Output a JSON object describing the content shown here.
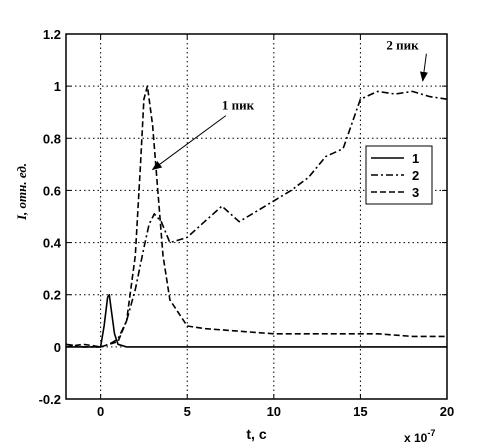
{
  "chart_data": {
    "type": "line",
    "xlabel": "t, c",
    "ylabel": "I, отн. ед.",
    "x_multiplier": "x 10",
    "x_multiplier_exp": "-7",
    "xlim": [
      -2,
      20
    ],
    "ylim": [
      -0.2,
      1.2
    ],
    "x_ticks": [
      0,
      5,
      10,
      15,
      20
    ],
    "x_tick_labels": [
      "0",
      "5",
      "10",
      "15",
      "20"
    ],
    "y_ticks": [
      -0.2,
      0,
      0.2,
      0.4,
      0.6,
      0.8,
      1,
      1.2
    ],
    "y_tick_labels": [
      "-0.2",
      "0",
      "0.2",
      "0.4",
      "0.6",
      "0.8",
      "1",
      "1.2"
    ],
    "grid": true,
    "legend_position": "right",
    "series": [
      {
        "name": "1",
        "style": "solid",
        "points": [
          [
            -2,
            0
          ],
          [
            0,
            0
          ],
          [
            0.2,
            0.08
          ],
          [
            0.4,
            0.19
          ],
          [
            0.5,
            0.2
          ],
          [
            0.6,
            0.15
          ],
          [
            0.8,
            0.05
          ],
          [
            1,
            0.01
          ],
          [
            1.5,
            0
          ],
          [
            20,
            0
          ]
        ]
      },
      {
        "name": "2",
        "style": "dashdot",
        "points": [
          [
            -2,
            0.01
          ],
          [
            -1,
            0
          ],
          [
            0,
            0
          ],
          [
            0.5,
            0.01
          ],
          [
            1,
            0.03
          ],
          [
            1.5,
            0.1
          ],
          [
            2,
            0.22
          ],
          [
            2.5,
            0.38
          ],
          [
            2.8,
            0.47
          ],
          [
            3.1,
            0.51
          ],
          [
            3.5,
            0.48
          ],
          [
            4,
            0.4
          ],
          [
            5,
            0.42
          ],
          [
            6,
            0.48
          ],
          [
            7,
            0.54
          ],
          [
            8,
            0.48
          ],
          [
            9,
            0.52
          ],
          [
            10,
            0.56
          ],
          [
            11,
            0.6
          ],
          [
            12,
            0.65
          ],
          [
            13,
            0.73
          ],
          [
            14,
            0.76
          ],
          [
            15,
            0.95
          ],
          [
            16,
            0.98
          ],
          [
            17,
            0.97
          ],
          [
            18,
            0.98
          ],
          [
            19,
            0.96
          ],
          [
            20,
            0.95
          ]
        ]
      },
      {
        "name": "3",
        "style": "dashed",
        "points": [
          [
            -2,
            0
          ],
          [
            -1,
            0.01
          ],
          [
            0,
            0
          ],
          [
            1,
            0.02
          ],
          [
            1.5,
            0.1
          ],
          [
            2,
            0.35
          ],
          [
            2.3,
            0.7
          ],
          [
            2.5,
            0.95
          ],
          [
            2.7,
            1.0
          ],
          [
            3,
            0.85
          ],
          [
            3.3,
            0.6
          ],
          [
            3.6,
            0.35
          ],
          [
            4,
            0.18
          ],
          [
            4.5,
            0.13
          ],
          [
            5,
            0.08
          ],
          [
            6,
            0.07
          ],
          [
            8,
            0.06
          ],
          [
            10,
            0.05
          ],
          [
            12,
            0.05
          ],
          [
            14,
            0.05
          ],
          [
            16,
            0.05
          ],
          [
            18,
            0.04
          ],
          [
            20,
            0.04
          ]
        ]
      }
    ],
    "annotations": [
      {
        "text": "1 пик",
        "x": 7.0,
        "y": 0.91,
        "target_x": 3.0,
        "target_y": 0.68
      },
      {
        "text": "2 пик",
        "x": 16.5,
        "y": 1.14,
        "target_x": 18.6,
        "target_y": 1.02
      }
    ]
  }
}
